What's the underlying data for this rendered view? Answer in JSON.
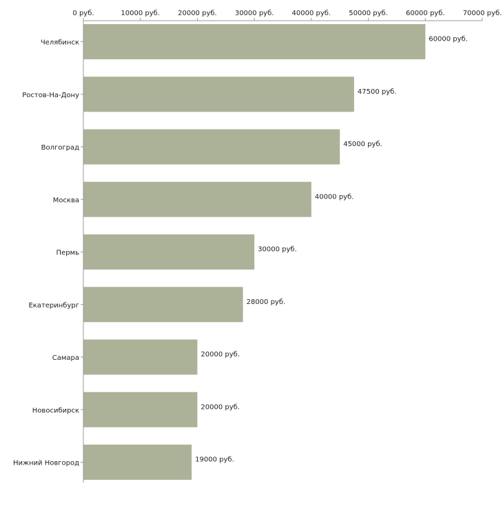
{
  "chart_data": {
    "type": "bar",
    "orientation": "horizontal",
    "title": "",
    "xlabel": "",
    "ylabel": "",
    "categories": [
      "Челябинск",
      "Ростов-На-Дону",
      "Волгоград",
      "Москва",
      "Пермь",
      "Екатеринбург",
      "Самара",
      "Новосибирск",
      "Нижний Новгород"
    ],
    "values": [
      60000,
      47500,
      45000,
      40000,
      30000,
      28000,
      20000,
      20000,
      19000
    ],
    "value_labels": [
      "60000 руб.",
      "47500 руб.",
      "45000 руб.",
      "40000 руб.",
      "30000 руб.",
      "28000 руб.",
      "20000 руб.",
      "20000 руб.",
      "19000 руб."
    ],
    "xlim": [
      0,
      70000
    ],
    "x_ticks": [
      0,
      10000,
      20000,
      30000,
      40000,
      50000,
      60000,
      70000
    ],
    "x_tick_labels": [
      "0 руб.",
      "10000 руб.",
      "20000 руб.",
      "30000 руб.",
      "40000 руб.",
      "50000 руб.",
      "60000 руб.",
      "70000 руб."
    ],
    "x_axis_position": "top",
    "grid": false,
    "bar_color": "#acb298",
    "axis_color": "#999999"
  }
}
